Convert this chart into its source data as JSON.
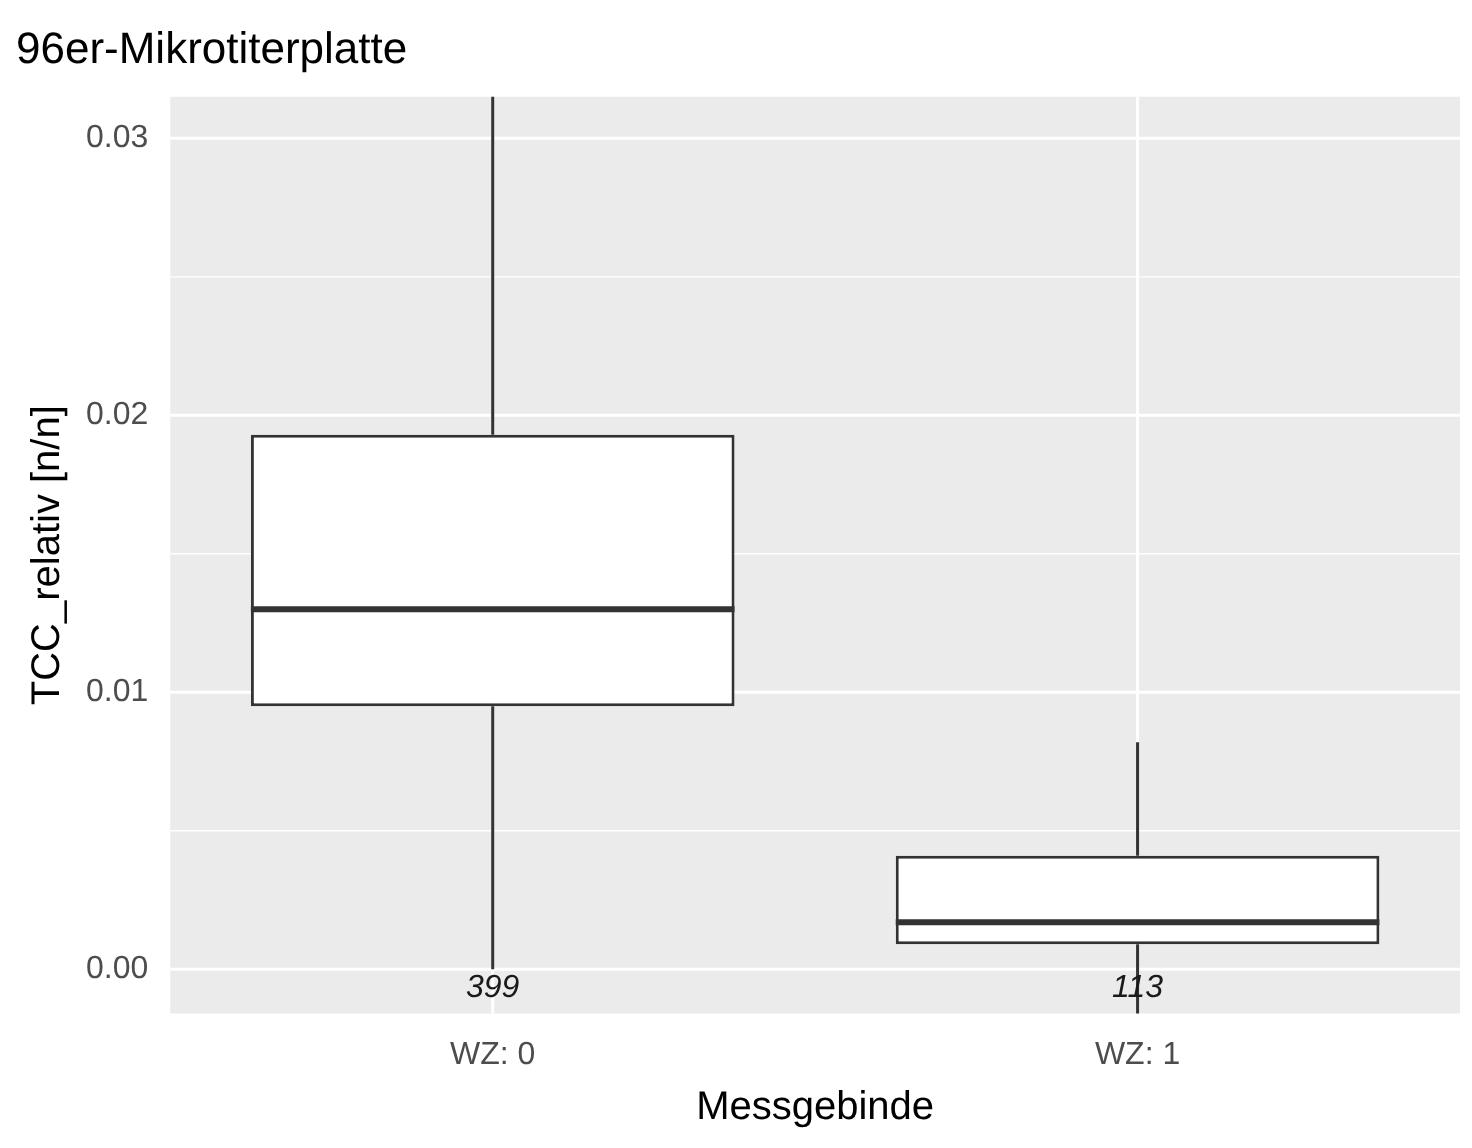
{
  "chart_data": {
    "type": "box",
    "title": "96er-Mikrotiterplatte",
    "xlabel": "Messgebinde",
    "ylabel": "TCC_relativ [n/n]",
    "categories": [
      "WZ: 0",
      "WZ: 1"
    ],
    "boxes": [
      {
        "low": 0,
        "q1": 0.0095,
        "median": 0.013,
        "q3": 0.0193,
        "high": 0.0315
      },
      {
        "low": -0.0016,
        "q1": 0.0009,
        "median": 0.0017,
        "q3": 0.0041,
        "high": 0.0082
      }
    ],
    "ylim": [
      -0.0016,
      0.0315
    ],
    "yticks": [
      {
        "value": 0,
        "label": "0.00"
      },
      {
        "value": 0.005,
        "label": null
      },
      {
        "value": 0.01,
        "label": "0.01"
      },
      {
        "value": 0.015,
        "label": null
      },
      {
        "value": 0.02,
        "label": "0.02"
      },
      {
        "value": 0.025,
        "label": null
      },
      {
        "value": 0.03,
        "label": "0.03"
      }
    ],
    "grid": true,
    "legend": false,
    "annotations": [
      "399",
      "113"
    ]
  }
}
